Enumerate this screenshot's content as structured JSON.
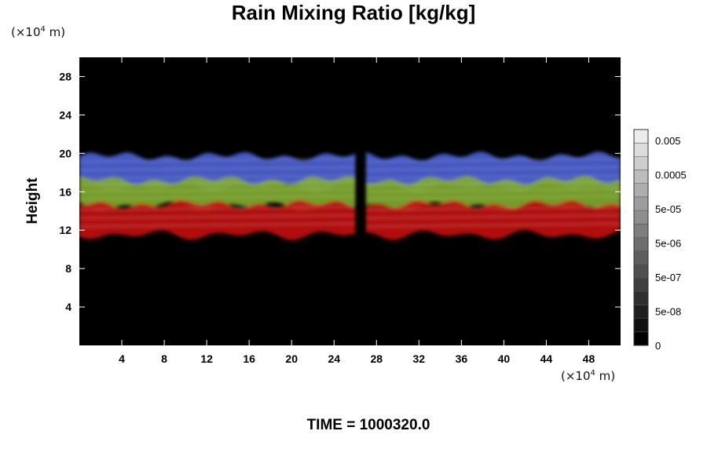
{
  "chart_data": {
    "type": "heatmap",
    "title": "Rain Mixing Ratio [kg/kg]",
    "ylabel": "Height",
    "xlabel": "",
    "y_unit": {
      "prefix": "(×10",
      "exp": "4",
      "suffix": " m)"
    },
    "x_unit": {
      "prefix": "(×10",
      "exp": "4",
      "suffix": " m)"
    },
    "xlim": [
      0,
      51
    ],
    "ylim": [
      0,
      30
    ],
    "x_ticks": [
      4,
      8,
      12,
      16,
      20,
      24,
      28,
      32,
      36,
      40,
      44,
      48
    ],
    "y_ticks": [
      4,
      8,
      12,
      16,
      20,
      24,
      28
    ],
    "layers": [
      {
        "name": "blue",
        "y_bottom": 16.5,
        "y_top": 20,
        "color": "#4a5ed0"
      },
      {
        "name": "green",
        "y_bottom": 14.5,
        "y_top": 17.5,
        "color": "#7fa82c"
      },
      {
        "name": "red",
        "y_bottom": 11.5,
        "y_top": 15.0,
        "color": "#c01212"
      }
    ],
    "gap_x": [
      26,
      27
    ],
    "colorbar": {
      "labels": [
        "0.005",
        "0.0005",
        "5e-05",
        "5e-06",
        "5e-07",
        "5e-08",
        "0"
      ],
      "bands": 16
    },
    "time_label": "TIME = 1000320.0"
  },
  "colors": {
    "background": "#000000",
    "foreground": "#ffffff"
  }
}
